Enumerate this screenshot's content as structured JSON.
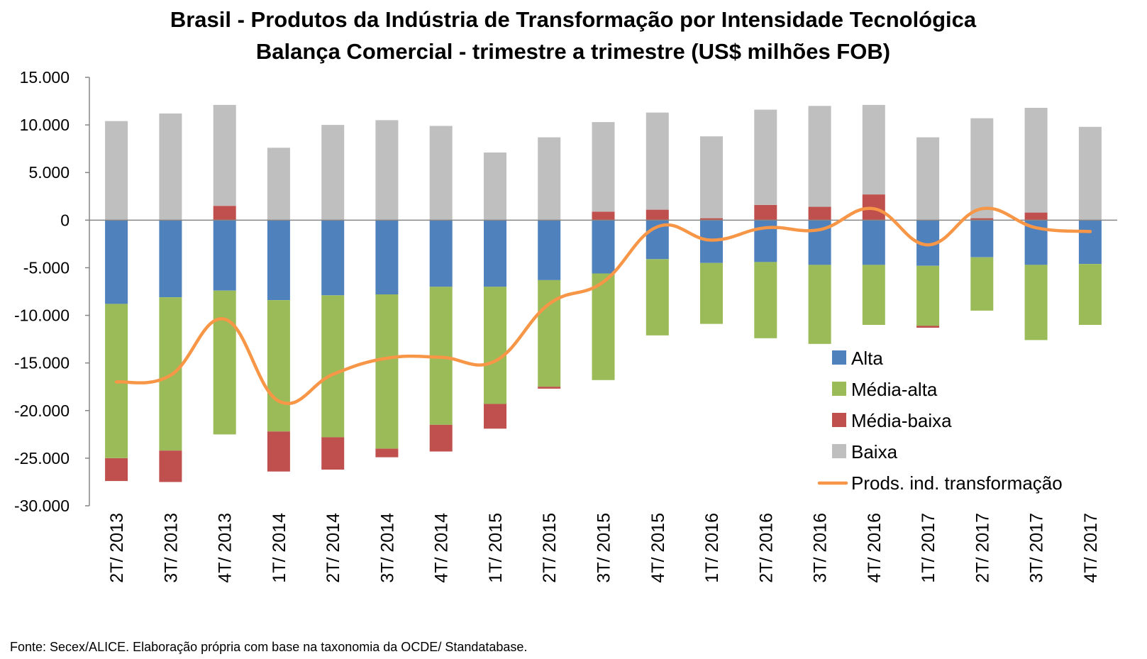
{
  "chart_data": {
    "type": "bar",
    "stacked": true,
    "title": "Brasil - Produtos da Indústria de Transformação por Intensidade Tecnológica",
    "subtitle": "Balança Comercial - trimestre a trimestre (US$ milhões FOB)",
    "source": "Fonte: Secex/ALICE. Elaboração própria com base na taxonomia da OCDE/ Standatabase.",
    "ylim": [
      -30000,
      15000
    ],
    "yticks": [
      15000,
      10000,
      5000,
      0,
      -5000,
      -10000,
      -15000,
      -20000,
      -25000,
      -30000
    ],
    "ytick_labels": [
      "15.000",
      "10.000",
      "5.000",
      "0",
      "-5.000",
      "-10.000",
      "-15.000",
      "-20.000",
      "-25.000",
      "-30.000"
    ],
    "grid": false,
    "legend_position": "bottom-right",
    "categories": [
      "2T/ 2013",
      "3T/ 2013",
      "4T/ 2013",
      "1T/ 2014",
      "2T/ 2014",
      "3T/ 2014",
      "4T/ 2014",
      "1T/ 2015",
      "2T/ 2015",
      "3T/ 2015",
      "4T/ 2015",
      "1T/ 2016",
      "2T/ 2016",
      "3T/ 2016",
      "4T/ 2016",
      "1T/ 2017",
      "2T/ 2017",
      "3T/ 2017",
      "4T/ 2017"
    ],
    "series": [
      {
        "name": "Alta",
        "type": "bar",
        "color": "#4f81bd",
        "values": [
          -8800,
          -8100,
          -7400,
          -8400,
          -7900,
          -7800,
          -7000,
          -7000,
          -6300,
          -5600,
          -4100,
          -4500,
          -4400,
          -4700,
          -4700,
          -4800,
          -3900,
          -4700,
          -4600
        ]
      },
      {
        "name": "Média-alta",
        "type": "bar",
        "color": "#9bbb59",
        "values": [
          -16200,
          -16100,
          -15100,
          -13800,
          -14900,
          -16200,
          -14500,
          -12300,
          -11200,
          -11200,
          -8000,
          -6400,
          -8000,
          -8300,
          -6300,
          -6300,
          -5600,
          -7900,
          -6400
        ]
      },
      {
        "name": "Média-baixa",
        "type": "bar",
        "color": "#c0504d",
        "values": [
          -2400,
          -3300,
          1500,
          -4200,
          -3400,
          -900,
          -2800,
          -2600,
          -200,
          900,
          1100,
          200,
          1600,
          1400,
          2700,
          -200,
          200,
          800,
          0
        ]
      },
      {
        "name": "Baixa",
        "type": "bar",
        "color": "#bfbfbf",
        "values": [
          10400,
          11200,
          10600,
          7600,
          10000,
          10500,
          9900,
          7100,
          8700,
          9400,
          10200,
          8600,
          10000,
          10600,
          9400,
          8700,
          10500,
          11000,
          9800
        ]
      },
      {
        "name": "Prods. ind. transformação",
        "type": "line",
        "color": "#f79646",
        "values": [
          -17000,
          -16300,
          -10400,
          -19000,
          -16200,
          -14500,
          -14400,
          -14800,
          -8800,
          -6500,
          -700,
          -2100,
          -800,
          -1000,
          1200,
          -2600,
          1200,
          -800,
          -1200
        ]
      }
    ]
  }
}
